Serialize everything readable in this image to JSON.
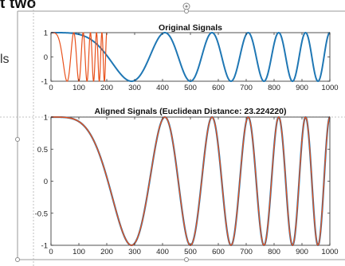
{
  "page": {
    "fragment_title": "t two",
    "fragment_left_text": "ls"
  },
  "colors": {
    "blue": "#1f77b4",
    "orange": "#e8501a",
    "axis": "#262626",
    "guide": "#9a9a9a",
    "handle": "#8a8a8a"
  },
  "chart_data": [
    {
      "type": "line",
      "title": "Original Signals",
      "xlim": [
        0,
        1000
      ],
      "ylim": [
        -1,
        1
      ],
      "xticks": [
        0,
        100,
        200,
        300,
        400,
        500,
        600,
        700,
        800,
        900,
        1000
      ],
      "yticks": [
        -1,
        0,
        1
      ],
      "grid": false,
      "series": [
        {
          "color": "blue",
          "formula": "cos(2*pi*(x/1000)^2 * 6)",
          "x_range": [
            0,
            1000
          ]
        },
        {
          "color": "orange",
          "formula": "cos(2*pi*(x/200)^2 * 6)",
          "x_range": [
            0,
            200
          ]
        }
      ]
    },
    {
      "type": "line",
      "title": "Aligned Signals (Euclidean Distance: 23.224220)",
      "xlim": [
        0,
        1000
      ],
      "ylim": [
        -1,
        1
      ],
      "xticks": [
        0,
        100,
        200,
        300,
        400,
        500,
        600,
        700,
        800,
        900,
        1000
      ],
      "yticks": [
        -1,
        -0.5,
        0,
        0.5,
        1
      ],
      "grid": false,
      "series": [
        {
          "color": "blue",
          "formula": "cos(2*pi*(x/1000)^2 * 6)",
          "x_range": [
            0,
            1000
          ],
          "marker": "none"
        },
        {
          "color": "orange",
          "formula": "cos(2*pi*(x/1000)^2 * 6)",
          "x_range": [
            0,
            1000
          ],
          "marker": "dot"
        }
      ]
    }
  ]
}
